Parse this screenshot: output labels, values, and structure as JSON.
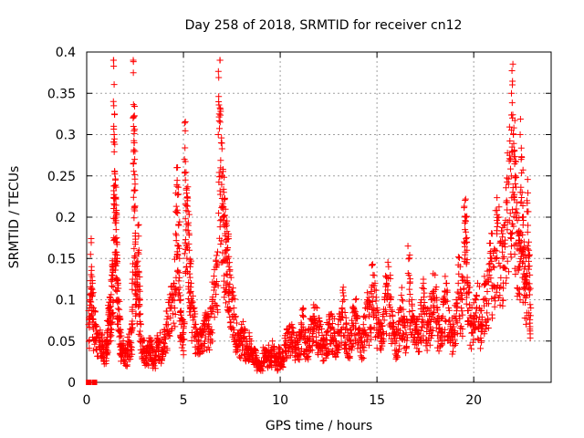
{
  "chart_data": {
    "type": "scatter",
    "title": "Day 258 of 2018, SRMTID for receiver cn12",
    "xlabel": "GPS time / hours",
    "ylabel": "SRMTID / TECUs",
    "xlim": [
      0,
      24
    ],
    "ylim": [
      0,
      0.4
    ],
    "xticks": [
      0,
      5,
      10,
      15,
      20
    ],
    "xtick_labels": [
      "0",
      "5",
      "10",
      "15",
      "20"
    ],
    "yticks": [
      0,
      0.05,
      0.1,
      0.15,
      0.2,
      0.25,
      0.3,
      0.35,
      0.4
    ],
    "ytick_labels": [
      "0",
      "0.05",
      "0.1",
      "0.15",
      "0.2",
      "0.25",
      "0.3",
      "0.35",
      "0.4"
    ],
    "grid": true,
    "marker": "+",
    "marker_color": "#ff0000",
    "zero_markers": [
      [
        0.1,
        0.0
      ],
      [
        0.4,
        0.0
      ]
    ],
    "series": [
      {
        "name": "SRMTID",
        "points": [
          [
            0.1,
            0.07
          ],
          [
            0.15,
            0.1
          ],
          [
            0.2,
            0.155
          ],
          [
            0.25,
            0.14
          ],
          [
            0.3,
            0.12
          ],
          [
            0.35,
            0.09
          ],
          [
            0.45,
            0.07
          ],
          [
            0.5,
            0.055
          ],
          [
            0.6,
            0.06
          ],
          [
            0.7,
            0.05
          ],
          [
            0.8,
            0.045
          ],
          [
            0.9,
            0.05
          ],
          [
            1.0,
            0.04
          ],
          [
            1.05,
            0.06
          ],
          [
            1.1,
            0.075
          ],
          [
            1.15,
            0.09
          ],
          [
            1.2,
            0.08
          ],
          [
            1.25,
            0.1
          ],
          [
            1.3,
            0.13
          ],
          [
            1.35,
            0.135
          ],
          [
            1.38,
            0.34
          ],
          [
            1.4,
            0.335
          ],
          [
            1.42,
            0.3
          ],
          [
            1.45,
            0.255
          ],
          [
            1.48,
            0.245
          ],
          [
            1.5,
            0.2
          ],
          [
            1.52,
            0.185
          ],
          [
            1.55,
            0.175
          ],
          [
            1.58,
            0.15
          ],
          [
            1.6,
            0.12
          ],
          [
            1.65,
            0.1
          ],
          [
            1.7,
            0.08
          ],
          [
            1.75,
            0.06
          ],
          [
            1.8,
            0.045
          ],
          [
            1.9,
            0.04
          ],
          [
            2.0,
            0.035
          ],
          [
            2.1,
            0.045
          ],
          [
            2.2,
            0.05
          ],
          [
            2.3,
            0.06
          ],
          [
            2.35,
            0.12
          ],
          [
            2.4,
            0.32
          ],
          [
            2.42,
            0.31
          ],
          [
            2.45,
            0.29
          ],
          [
            2.48,
            0.27
          ],
          [
            2.5,
            0.24
          ],
          [
            2.52,
            0.17
          ],
          [
            2.55,
            0.14
          ],
          [
            2.6,
            0.125
          ],
          [
            2.65,
            0.19
          ],
          [
            2.7,
            0.16
          ],
          [
            2.75,
            0.1
          ],
          [
            2.8,
            0.07
          ],
          [
            2.9,
            0.05
          ],
          [
            3.0,
            0.04
          ],
          [
            3.1,
            0.035
          ],
          [
            3.2,
            0.045
          ],
          [
            3.3,
            0.05
          ],
          [
            3.4,
            0.04
          ],
          [
            3.5,
            0.03
          ],
          [
            3.6,
            0.05
          ],
          [
            3.7,
            0.045
          ],
          [
            3.8,
            0.06
          ],
          [
            3.9,
            0.04
          ],
          [
            4.0,
            0.055
          ],
          [
            4.1,
            0.07
          ],
          [
            4.2,
            0.08
          ],
          [
            4.3,
            0.09
          ],
          [
            4.4,
            0.1
          ],
          [
            4.5,
            0.12
          ],
          [
            4.6,
            0.18
          ],
          [
            4.65,
            0.26
          ],
          [
            4.7,
            0.205
          ],
          [
            4.75,
            0.19
          ],
          [
            4.8,
            0.15
          ],
          [
            4.85,
            0.1
          ],
          [
            4.9,
            0.07
          ],
          [
            5.0,
            0.06
          ],
          [
            5.05,
            0.27
          ],
          [
            5.1,
            0.245
          ],
          [
            5.15,
            0.235
          ],
          [
            5.2,
            0.22
          ],
          [
            5.25,
            0.19
          ],
          [
            5.3,
            0.16
          ],
          [
            5.35,
            0.14
          ],
          [
            5.4,
            0.12
          ],
          [
            5.5,
            0.09
          ],
          [
            5.6,
            0.07
          ],
          [
            5.7,
            0.06
          ],
          [
            5.8,
            0.05
          ],
          [
            5.9,
            0.055
          ],
          [
            6.0,
            0.06
          ],
          [
            6.1,
            0.07
          ],
          [
            6.2,
            0.08
          ],
          [
            6.3,
            0.065
          ],
          [
            6.4,
            0.09
          ],
          [
            6.5,
            0.1
          ],
          [
            6.6,
            0.12
          ],
          [
            6.7,
            0.14
          ],
          [
            6.8,
            0.3
          ],
          [
            6.85,
            0.325
          ],
          [
            6.9,
            0.315
          ],
          [
            6.95,
            0.29
          ],
          [
            7.0,
            0.25
          ],
          [
            7.05,
            0.21
          ],
          [
            7.1,
            0.2
          ],
          [
            7.15,
            0.18
          ],
          [
            7.2,
            0.17
          ],
          [
            7.25,
            0.16
          ],
          [
            7.3,
            0.15
          ],
          [
            7.35,
            0.14
          ],
          [
            7.4,
            0.13
          ],
          [
            7.5,
            0.11
          ],
          [
            7.6,
            0.09
          ],
          [
            7.7,
            0.08
          ],
          [
            7.8,
            0.06
          ],
          [
            7.9,
            0.05
          ],
          [
            8.0,
            0.07
          ],
          [
            8.1,
            0.06
          ],
          [
            8.2,
            0.05
          ],
          [
            8.3,
            0.04
          ],
          [
            8.4,
            0.06
          ],
          [
            8.5,
            0.05
          ],
          [
            8.6,
            0.035
          ],
          [
            8.7,
            0.04
          ],
          [
            8.8,
            0.03
          ],
          [
            8.9,
            0.025
          ],
          [
            9.0,
            0.02
          ],
          [
            9.1,
            0.035
          ],
          [
            9.2,
            0.04
          ],
          [
            9.3,
            0.03
          ],
          [
            9.4,
            0.045
          ],
          [
            9.5,
            0.03
          ],
          [
            9.6,
            0.05
          ],
          [
            9.7,
            0.04
          ],
          [
            9.8,
            0.025
          ],
          [
            9.9,
            0.035
          ],
          [
            10.0,
            0.04
          ],
          [
            10.1,
            0.03
          ],
          [
            10.2,
            0.045
          ],
          [
            10.3,
            0.05
          ],
          [
            10.4,
            0.06
          ],
          [
            10.5,
            0.055
          ],
          [
            10.6,
            0.07
          ],
          [
            10.7,
            0.06
          ],
          [
            10.8,
            0.045
          ],
          [
            10.9,
            0.05
          ],
          [
            11.0,
            0.06
          ],
          [
            11.1,
            0.07
          ],
          [
            11.2,
            0.08
          ],
          [
            11.3,
            0.06
          ],
          [
            11.4,
            0.05
          ],
          [
            11.5,
            0.065
          ],
          [
            11.6,
            0.07
          ],
          [
            11.7,
            0.08
          ],
          [
            11.8,
            0.075
          ],
          [
            11.9,
            0.09
          ],
          [
            12.0,
            0.06
          ],
          [
            12.1,
            0.07
          ],
          [
            12.2,
            0.05
          ],
          [
            12.3,
            0.045
          ],
          [
            12.4,
            0.06
          ],
          [
            12.5,
            0.07
          ],
          [
            12.6,
            0.065
          ],
          [
            12.7,
            0.08
          ],
          [
            12.8,
            0.06
          ],
          [
            12.9,
            0.05
          ],
          [
            13.0,
            0.07
          ],
          [
            13.1,
            0.08
          ],
          [
            13.2,
            0.09
          ],
          [
            13.3,
            0.1
          ],
          [
            13.4,
            0.07
          ],
          [
            13.5,
            0.06
          ],
          [
            13.6,
            0.05
          ],
          [
            13.7,
            0.075
          ],
          [
            13.8,
            0.09
          ],
          [
            13.9,
            0.1
          ],
          [
            14.0,
            0.08
          ],
          [
            14.1,
            0.06
          ],
          [
            14.2,
            0.05
          ],
          [
            14.3,
            0.07
          ],
          [
            14.4,
            0.09
          ],
          [
            14.5,
            0.1
          ],
          [
            14.6,
            0.08
          ],
          [
            14.7,
            0.11
          ],
          [
            14.8,
            0.13
          ],
          [
            14.9,
            0.12
          ],
          [
            15.0,
            0.09
          ],
          [
            15.1,
            0.07
          ],
          [
            15.2,
            0.06
          ],
          [
            15.3,
            0.08
          ],
          [
            15.4,
            0.1
          ],
          [
            15.5,
            0.12
          ],
          [
            15.6,
            0.14
          ],
          [
            15.7,
            0.1
          ],
          [
            15.8,
            0.08
          ],
          [
            15.9,
            0.06
          ],
          [
            16.0,
            0.05
          ],
          [
            16.1,
            0.07
          ],
          [
            16.2,
            0.09
          ],
          [
            16.3,
            0.1
          ],
          [
            16.4,
            0.08
          ],
          [
            16.5,
            0.06
          ],
          [
            16.6,
            0.165
          ],
          [
            16.7,
            0.12
          ],
          [
            16.8,
            0.1
          ],
          [
            16.9,
            0.08
          ],
          [
            17.0,
            0.07
          ],
          [
            17.1,
            0.06
          ],
          [
            17.2,
            0.08
          ],
          [
            17.3,
            0.1
          ],
          [
            17.4,
            0.12
          ],
          [
            17.5,
            0.09
          ],
          [
            17.6,
            0.07
          ],
          [
            17.7,
            0.08
          ],
          [
            17.8,
            0.1
          ],
          [
            17.9,
            0.11
          ],
          [
            18.0,
            0.13
          ],
          [
            18.1,
            0.09
          ],
          [
            18.2,
            0.07
          ],
          [
            18.3,
            0.06
          ],
          [
            18.4,
            0.08
          ],
          [
            18.5,
            0.1
          ],
          [
            18.6,
            0.12
          ],
          [
            18.7,
            0.09
          ],
          [
            18.8,
            0.07
          ],
          [
            18.9,
            0.06
          ],
          [
            19.0,
            0.08
          ],
          [
            19.1,
            0.1
          ],
          [
            19.2,
            0.12
          ],
          [
            19.3,
            0.14
          ],
          [
            19.4,
            0.1
          ],
          [
            19.5,
            0.17
          ],
          [
            19.55,
            0.185
          ],
          [
            19.6,
            0.2
          ],
          [
            19.65,
            0.16
          ],
          [
            19.7,
            0.12
          ],
          [
            19.8,
            0.09
          ],
          [
            19.9,
            0.07
          ],
          [
            20.0,
            0.08
          ],
          [
            20.1,
            0.1
          ],
          [
            20.2,
            0.12
          ],
          [
            20.3,
            0.09
          ],
          [
            20.4,
            0.07
          ],
          [
            20.5,
            0.1
          ],
          [
            20.6,
            0.12
          ],
          [
            20.7,
            0.11
          ],
          [
            20.8,
            0.13
          ],
          [
            20.9,
            0.15
          ],
          [
            21.0,
            0.14
          ],
          [
            21.1,
            0.16
          ],
          [
            21.2,
            0.18
          ],
          [
            21.3,
            0.2
          ],
          [
            21.4,
            0.17
          ],
          [
            21.5,
            0.15
          ],
          [
            21.6,
            0.19
          ],
          [
            21.7,
            0.22
          ],
          [
            21.8,
            0.24
          ],
          [
            21.9,
            0.27
          ],
          [
            21.95,
            0.35
          ],
          [
            22.0,
            0.32
          ],
          [
            22.05,
            0.3
          ],
          [
            22.1,
            0.28
          ],
          [
            22.15,
            0.25
          ],
          [
            22.2,
            0.21
          ],
          [
            22.3,
            0.18
          ],
          [
            22.35,
            0.16
          ],
          [
            22.4,
            0.3
          ],
          [
            22.45,
            0.27
          ],
          [
            22.5,
            0.23
          ],
          [
            22.55,
            0.2
          ],
          [
            22.6,
            0.17
          ],
          [
            22.65,
            0.14
          ],
          [
            22.7,
            0.12
          ],
          [
            22.75,
            0.22
          ],
          [
            22.8,
            0.19
          ],
          [
            22.85,
            0.16
          ],
          [
            22.9,
            0.13
          ],
          [
            22.95,
            0.09
          ]
        ]
      }
    ]
  }
}
